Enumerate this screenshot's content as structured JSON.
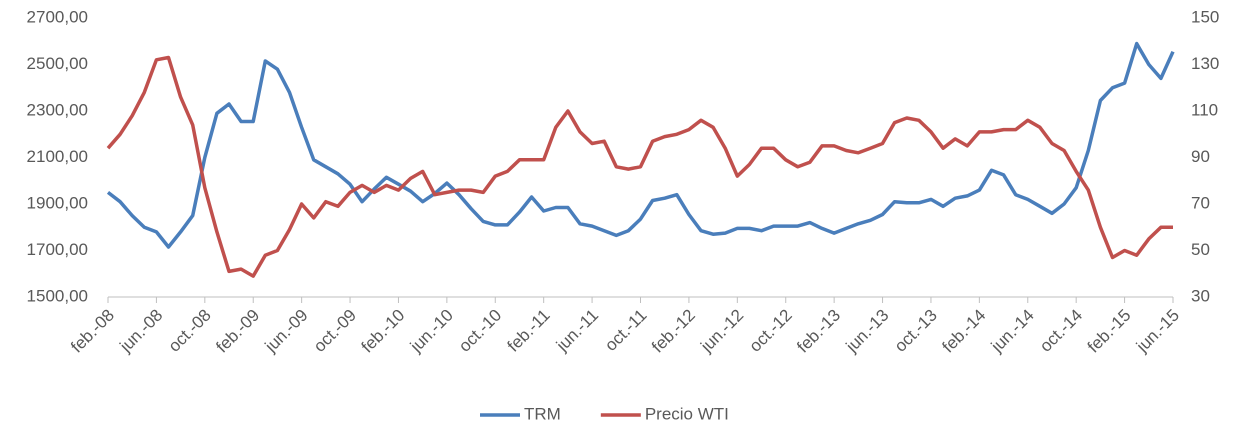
{
  "chart_data": {
    "type": "line",
    "categories": [
      "feb.-08",
      null,
      null,
      null,
      "jun.-08",
      null,
      null,
      null,
      "oct.-08",
      null,
      null,
      null,
      "feb.-09",
      null,
      null,
      null,
      "jun.-09",
      null,
      null,
      null,
      "oct.-09",
      null,
      null,
      null,
      "feb.-10",
      null,
      null,
      null,
      "jun.-10",
      null,
      null,
      null,
      "oct.-10",
      null,
      null,
      null,
      "feb.-11",
      null,
      null,
      null,
      "jun.-11",
      null,
      null,
      null,
      "oct.-11",
      null,
      null,
      null,
      "feb.-12",
      null,
      null,
      null,
      "jun.-12",
      null,
      null,
      null,
      "oct.-12",
      null,
      null,
      null,
      "feb.-13",
      null,
      null,
      null,
      "jun.-13",
      null,
      null,
      null,
      "oct.-13",
      null,
      null,
      null,
      "feb.-14",
      null,
      null,
      null,
      "jun.-14",
      null,
      null,
      null,
      "oct.-14",
      null,
      null,
      null,
      "feb.-15",
      null,
      null,
      null,
      "jun.-15"
    ],
    "series": [
      {
        "name": "TRM",
        "color": "#4a7ebb",
        "values": [
          1950,
          1910,
          1850,
          1800,
          1780,
          1715,
          1780,
          1850,
          2100,
          2290,
          2330,
          2255,
          2255,
          2515,
          2480,
          2380,
          2230,
          2090,
          2060,
          2030,
          1985,
          1910,
          1965,
          2015,
          1985,
          1955,
          1910,
          1945,
          1990,
          1940,
          1880,
          1825,
          1810,
          1810,
          1865,
          1930,
          1870,
          1885,
          1885,
          1815,
          1805,
          1785,
          1765,
          1785,
          1835,
          1915,
          1925,
          1940,
          1855,
          1785,
          1770,
          1775,
          1795,
          1795,
          1785,
          1805,
          1805,
          1805,
          1820,
          1795,
          1775,
          1795,
          1815,
          1830,
          1855,
          1910,
          1905,
          1905,
          1920,
          1890,
          1925,
          1935,
          1960,
          2045,
          2025,
          1940,
          1920,
          1890,
          1860,
          1900,
          1970,
          2130,
          2345,
          2400,
          2420,
          2590,
          2500,
          2440,
          2555
        ]
      },
      {
        "name": "Precio WTI",
        "color": "#c0504d",
        "axis": "y2",
        "values": [
          94,
          100,
          108,
          118,
          132,
          133,
          116,
          104,
          77,
          58,
          41,
          42,
          39,
          48,
          50,
          59,
          70,
          64,
          71,
          69,
          75,
          78,
          75,
          78,
          76,
          81,
          84,
          74,
          75,
          76,
          76,
          75,
          82,
          84,
          89,
          89,
          89,
          103,
          110,
          101,
          96,
          97,
          86,
          85,
          86,
          97,
          99,
          100,
          102,
          106,
          103,
          94,
          82,
          87,
          94,
          94,
          89,
          86,
          88,
          95,
          95,
          93,
          92,
          94,
          96,
          105,
          107,
          106,
          101,
          94,
          98,
          95,
          101,
          101,
          102,
          102,
          106,
          103,
          96,
          93,
          84,
          76,
          60,
          47,
          50,
          48,
          55,
          60,
          60
        ]
      }
    ],
    "ylim": [
      1500,
      2700
    ],
    "yticks": [
      {
        "value": 1500,
        "label": "1500,00"
      },
      {
        "value": 1700,
        "label": "1700,00"
      },
      {
        "value": 1900,
        "label": "1900,00"
      },
      {
        "value": 2100,
        "label": "2100,00"
      },
      {
        "value": 2300,
        "label": "2300,00"
      },
      {
        "value": 2500,
        "label": "2500,00"
      },
      {
        "value": 2700,
        "label": "2700,00"
      }
    ],
    "y2lim": [
      30,
      150
    ],
    "y2ticks": [
      30,
      50,
      70,
      90,
      110,
      130,
      150
    ],
    "grid": false,
    "legend": "bottom"
  }
}
